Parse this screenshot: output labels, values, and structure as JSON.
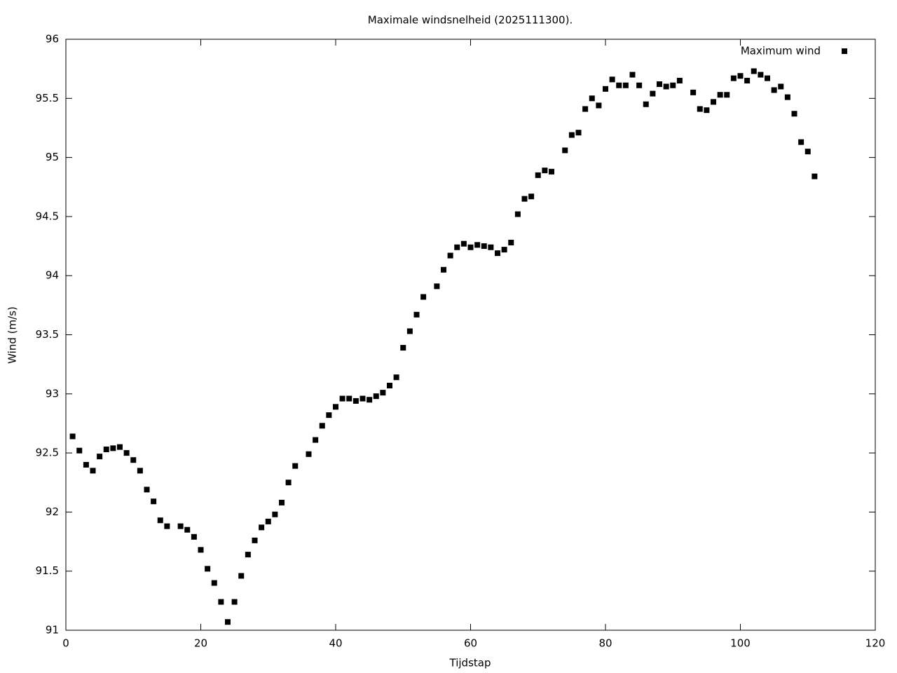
{
  "chart_data": {
    "type": "scatter",
    "title": "Maximale windsnelheid (2025111300).",
    "x_label": "Tijdstap",
    "y_label": "Wind (m/s)",
    "xlim": [
      0,
      120
    ],
    "xticks": [
      0,
      20,
      40,
      60,
      80,
      100,
      120
    ],
    "ylim": [
      91,
      96
    ],
    "yticks": [
      91,
      91.5,
      92,
      92.5,
      93,
      93.5,
      94,
      94.5,
      95,
      95.5,
      96
    ],
    "legend": "top-right",
    "series": [
      {
        "name": "Maximum wind",
        "color": "#000000",
        "x": [
          1,
          2,
          3,
          4,
          5,
          6,
          7,
          8,
          9,
          10,
          11,
          12,
          13,
          14,
          15,
          17,
          18,
          19,
          20,
          21,
          22,
          23,
          24,
          25,
          26,
          27,
          28,
          29,
          30,
          31,
          32,
          33,
          34,
          36,
          37,
          38,
          39,
          40,
          41,
          42,
          43,
          44,
          45,
          46,
          47,
          48,
          49,
          50,
          51,
          52,
          53,
          55,
          56,
          57,
          58,
          59,
          60,
          61,
          62,
          63,
          64,
          65,
          66,
          67,
          68,
          69,
          70,
          71,
          72,
          74,
          75,
          76,
          77,
          78,
          79,
          80,
          81,
          82,
          83,
          84,
          85,
          86,
          87,
          88,
          89,
          90,
          91,
          93,
          94,
          95,
          96,
          97,
          98,
          99,
          100,
          101,
          102,
          103,
          104,
          105,
          106,
          107,
          108,
          109,
          110,
          111
        ],
        "values": [
          92.64,
          92.52,
          92.4,
          92.35,
          92.47,
          92.53,
          92.54,
          92.55,
          92.5,
          92.44,
          92.35,
          92.19,
          92.09,
          91.93,
          91.88,
          91.88,
          91.85,
          91.79,
          91.68,
          91.52,
          91.4,
          91.24,
          91.07,
          91.24,
          91.46,
          91.64,
          91.76,
          91.87,
          91.92,
          91.98,
          92.08,
          92.25,
          92.39,
          92.49,
          92.61,
          92.73,
          92.82,
          92.89,
          92.96,
          92.96,
          92.94,
          92.96,
          92.95,
          92.98,
          93.01,
          93.07,
          93.14,
          93.39,
          93.53,
          93.67,
          93.82,
          93.91,
          94.05,
          94.17,
          94.24,
          94.27,
          94.24,
          94.26,
          94.25,
          94.24,
          94.19,
          94.22,
          94.28,
          94.52,
          94.65,
          94.67,
          94.85,
          94.89,
          94.88,
          95.06,
          95.19,
          95.21,
          95.41,
          95.5,
          95.44,
          95.58,
          95.66,
          95.61,
          95.61,
          95.7,
          95.61,
          95.45,
          95.54,
          95.62,
          95.6,
          95.61,
          95.65,
          95.55,
          95.41,
          95.4,
          95.47,
          95.53,
          95.53,
          95.67,
          95.69,
          95.65,
          95.73,
          95.7,
          95.67,
          95.57,
          95.6,
          95.51,
          95.37,
          95.13,
          95.05,
          94.84
        ]
      }
    ]
  }
}
